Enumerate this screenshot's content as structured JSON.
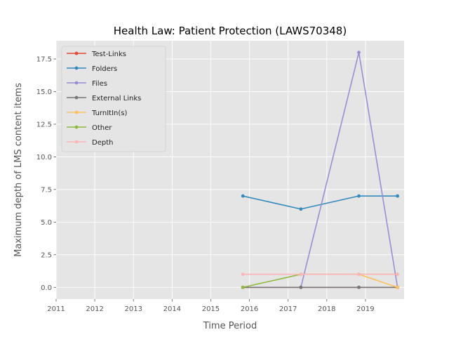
{
  "chart_data": {
    "type": "line",
    "title": "Health Law: Patient Protection (LAWS70348)",
    "xlabel": "Time Period",
    "ylabel": "Maximum depth of LMS content items",
    "xlim": [
      2011.0,
      2020.0
    ],
    "ylim": [
      -0.9,
      18.9
    ],
    "x_ticks": [
      2011,
      2012,
      2013,
      2014,
      2015,
      2016,
      2017,
      2018,
      2019
    ],
    "x_tick_labels": [
      "2011",
      "2012",
      "2013",
      "2014",
      "2015",
      "2016",
      "2017",
      "2018",
      "2019"
    ],
    "y_ticks": [
      0.0,
      2.5,
      5.0,
      7.5,
      10.0,
      12.5,
      15.0,
      17.5
    ],
    "y_tick_labels": [
      "0.0",
      "2.5",
      "5.0",
      "7.5",
      "10.0",
      "12.5",
      "15.0",
      "17.5"
    ],
    "grid": true,
    "legend_position": "top-left",
    "x": [
      2015.83,
      2017.33,
      2018.83,
      2019.83
    ],
    "series": [
      {
        "name": "Test-Links",
        "color": "#e24a33",
        "values": [
          0,
          0,
          0,
          0
        ]
      },
      {
        "name": "Folders",
        "color": "#348abd",
        "values": [
          7,
          6,
          7,
          7
        ]
      },
      {
        "name": "Files",
        "color": "#988ed5",
        "values": [
          null,
          0,
          18,
          0
        ]
      },
      {
        "name": "External Links",
        "color": "#777777",
        "values": [
          0,
          0,
          0,
          0
        ]
      },
      {
        "name": "TurnItIn(s)",
        "color": "#fbc15e",
        "values": [
          null,
          1,
          1,
          0
        ]
      },
      {
        "name": "Other",
        "color": "#8eba42",
        "values": [
          0,
          1,
          1,
          1
        ]
      },
      {
        "name": "Depth",
        "color": "#ffb5b8",
        "values": [
          1,
          1,
          1,
          1
        ]
      }
    ]
  }
}
